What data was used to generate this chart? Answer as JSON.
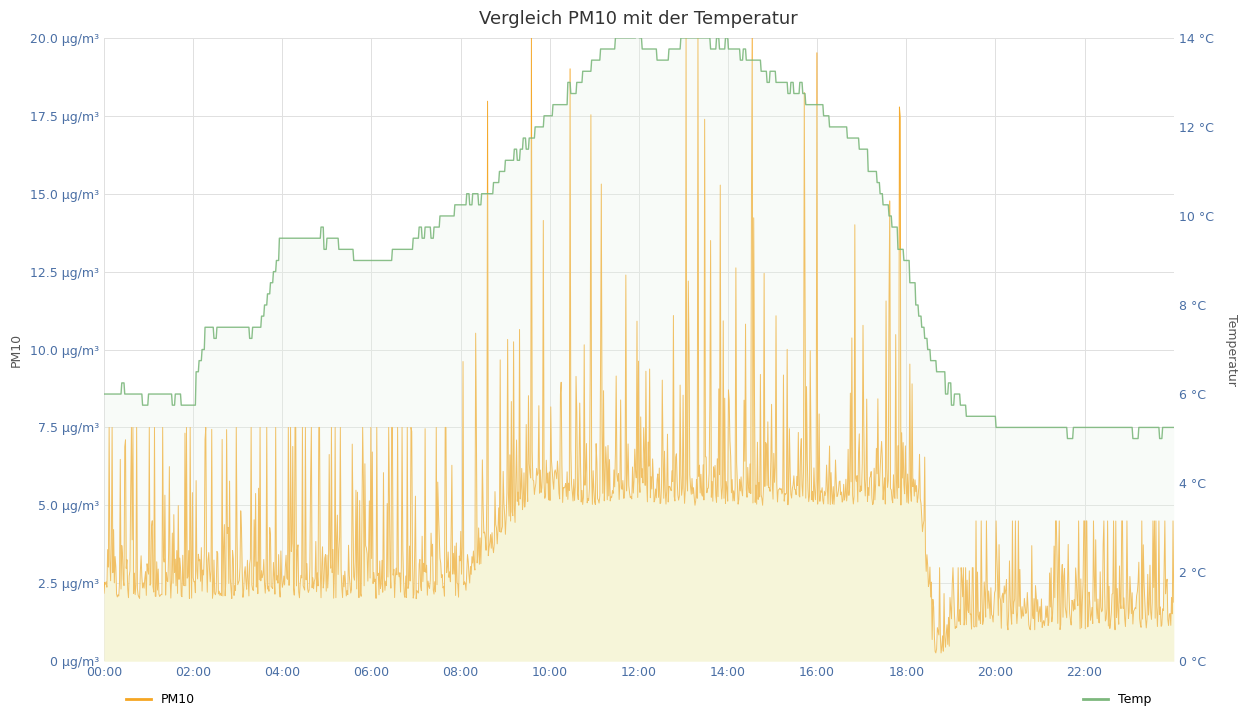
{
  "title": "Vergleich PM10 mit der Temperatur",
  "ylabel_left": "PM10",
  "ylabel_right": "Temperatur",
  "ylabel_left_ticks": [
    "0 μg/m³",
    "2.5 μg/m³",
    "5.0 μg/m³",
    "7.5 μg/m³",
    "10.0 μg/m³",
    "12.5 μg/m³",
    "15.0 μg/m³",
    "17.5 μg/m³",
    "20.0 μg/m³"
  ],
  "ylabel_right_ticks": [
    "0 °C",
    "2 °C",
    "4 °C",
    "6 °C",
    "8 °C",
    "10 °C",
    "12 °C",
    "14 °C"
  ],
  "pm10_color": "#f5a623",
  "temp_color": "#7db87d",
  "pm10_fill_color": "#fdf6d3",
  "temp_fill_color": "#e8f5e8",
  "background_color": "#ffffff",
  "grid_color": "#e0e0e0",
  "legend_pm10": "PM10",
  "legend_temp": "Temp",
  "x_ticks": [
    "00:00",
    "02:00",
    "04:00",
    "06:00",
    "08:00",
    "10:00",
    "12:00",
    "14:00",
    "16:00",
    "18:00",
    "20:00",
    "22:00"
  ],
  "pm10_ylim": [
    0,
    20
  ],
  "temp_ylim": [
    0,
    14
  ],
  "title_fontsize": 13,
  "tick_fontsize": 9
}
